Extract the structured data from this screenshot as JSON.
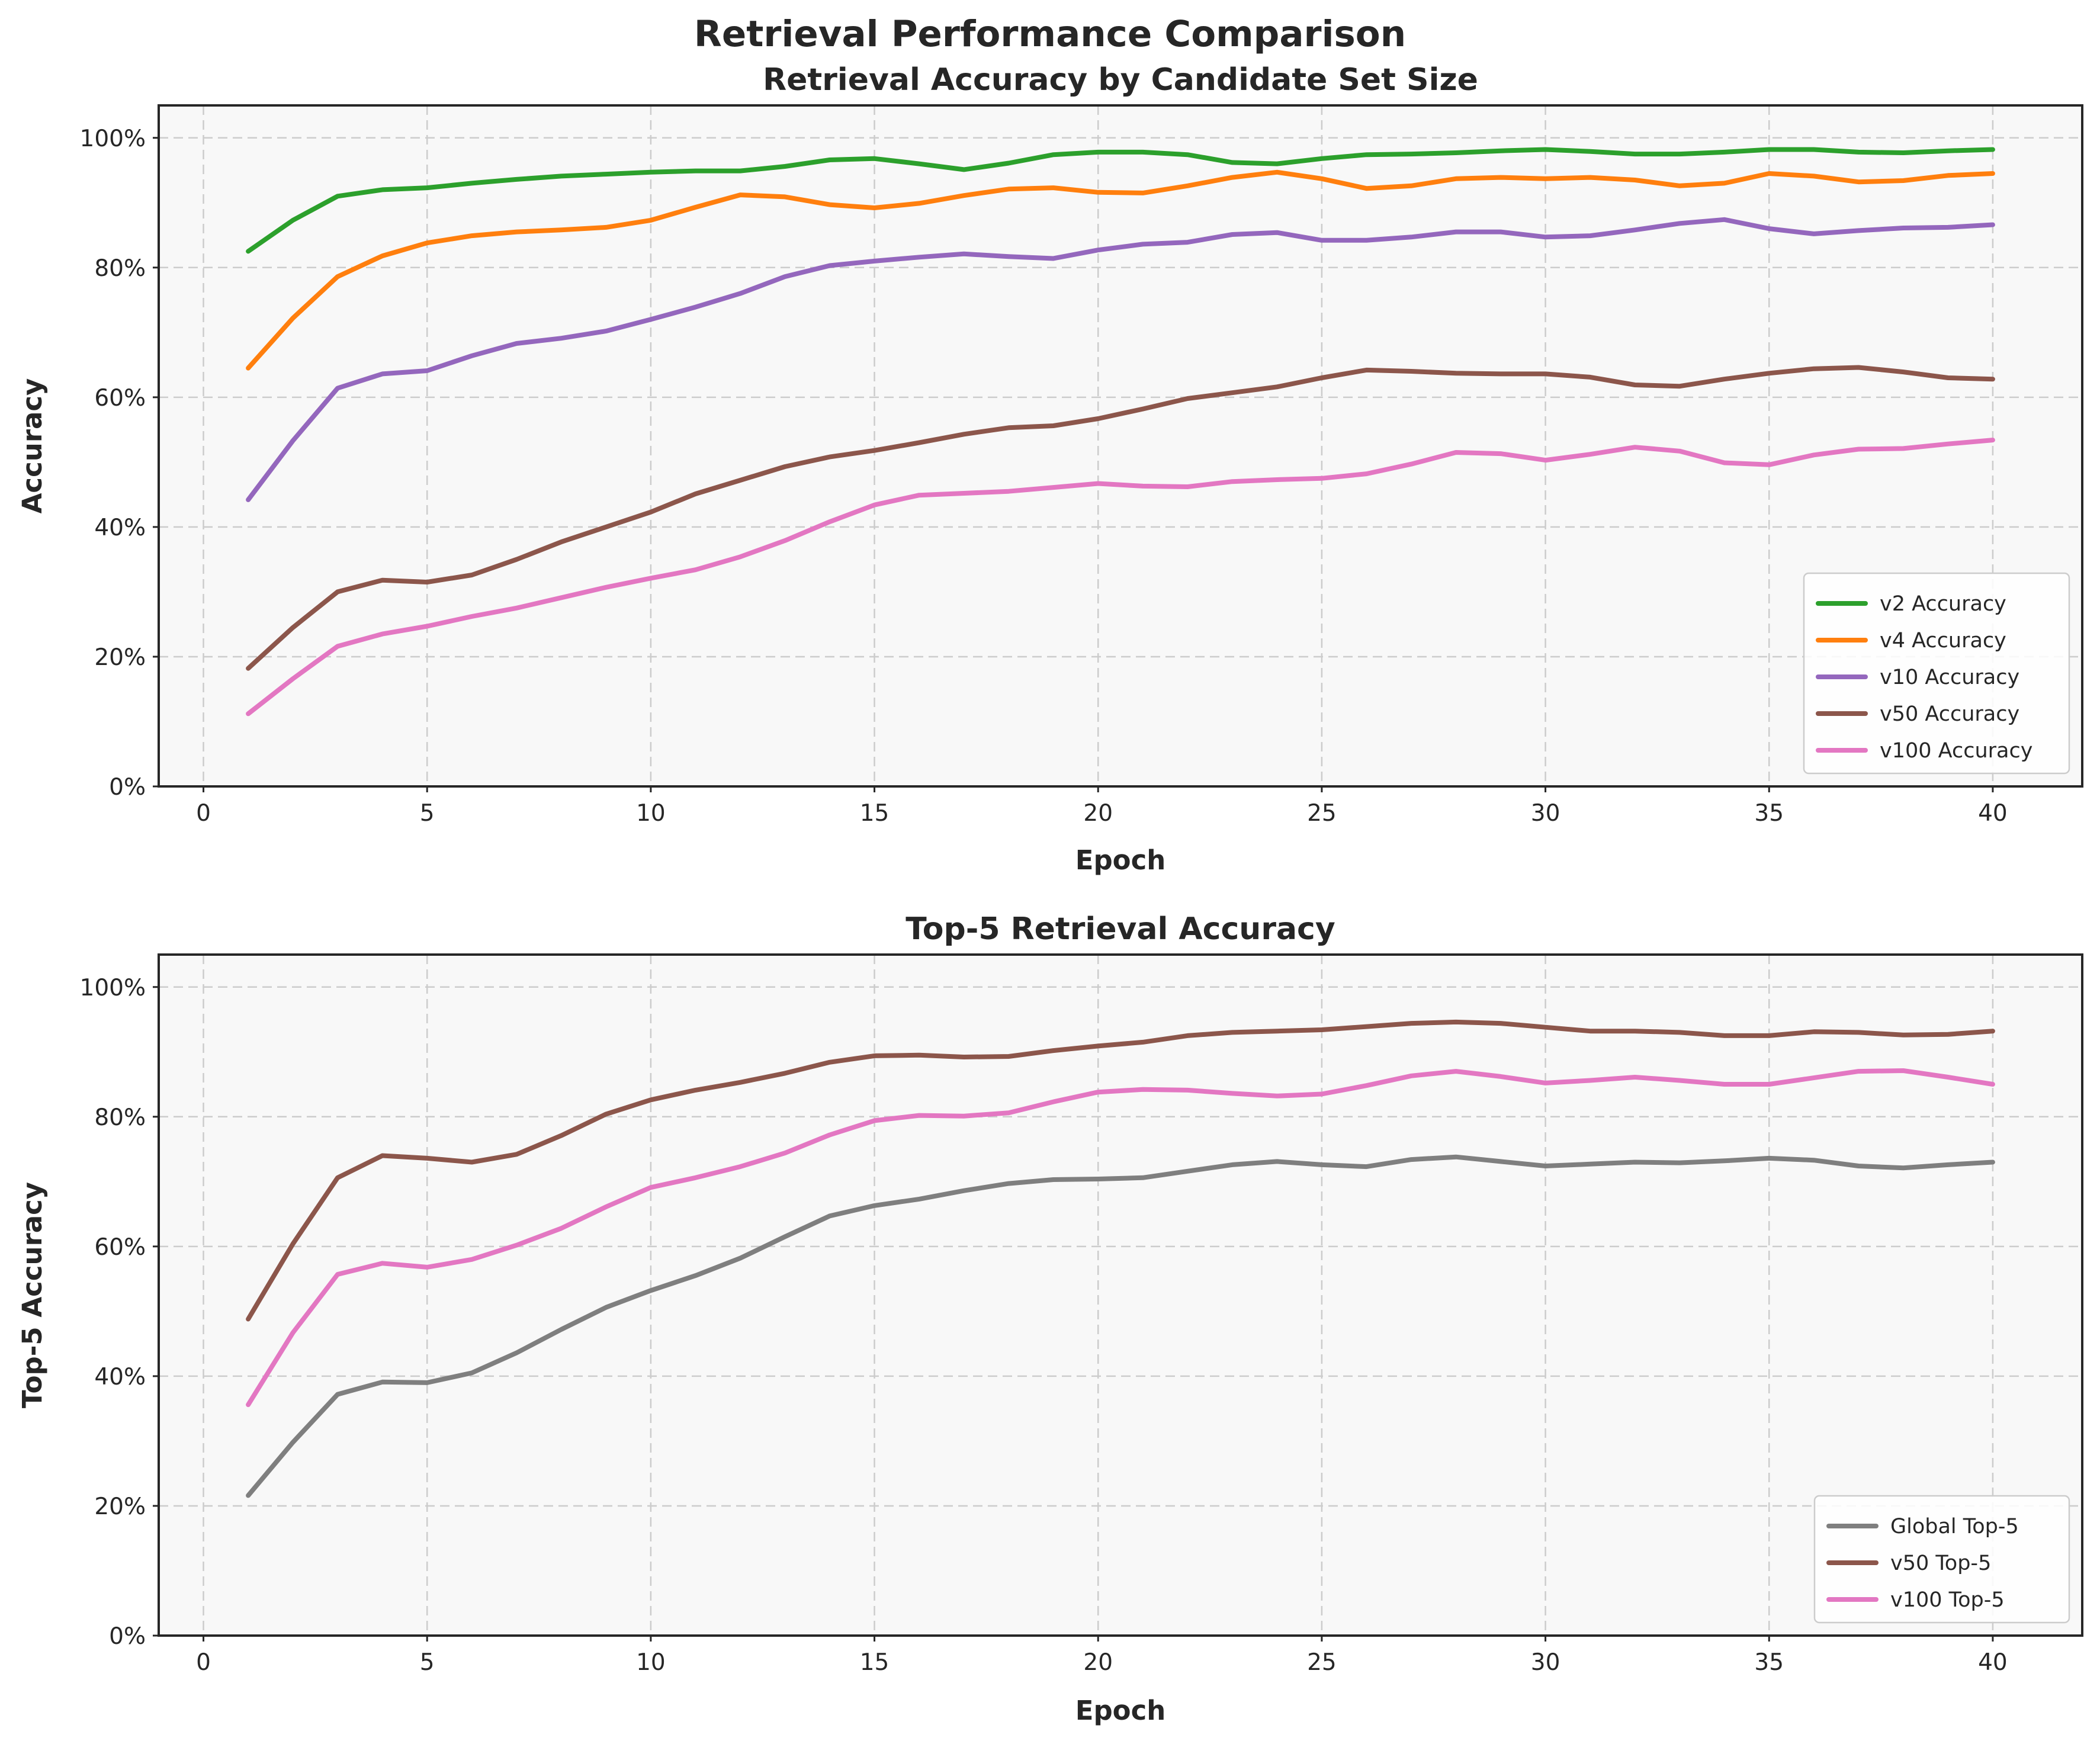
{
  "figure": {
    "suptitle": "Retrieval Performance Comparison"
  },
  "chart_data": [
    {
      "type": "line",
      "title": "Retrieval Accuracy by Candidate Set Size",
      "xlabel": "Epoch",
      "ylabel": "Accuracy",
      "xlim": [
        -1,
        42
      ],
      "ylim": [
        0,
        1.05
      ],
      "xticks": [
        0,
        5,
        10,
        15,
        20,
        25,
        30,
        35,
        40
      ],
      "yticks": [
        0,
        0.2,
        0.4,
        0.6,
        0.8,
        1.0
      ],
      "ytick_labels": [
        "0%",
        "20%",
        "40%",
        "60%",
        "80%",
        "100%"
      ],
      "xtick_labels": [
        "0",
        "5",
        "10",
        "15",
        "20",
        "25",
        "30",
        "35",
        "40"
      ],
      "grid": true,
      "legend_position": "lower-right",
      "x": [
        1,
        2,
        3,
        4,
        5,
        6,
        7,
        8,
        9,
        10,
        11,
        12,
        13,
        14,
        15,
        16,
        17,
        18,
        19,
        20,
        21,
        22,
        23,
        24,
        25,
        26,
        27,
        28,
        29,
        30,
        31,
        32,
        33,
        34,
        35,
        36,
        37,
        38,
        39,
        40
      ],
      "series": [
        {
          "name": "v2 Accuracy",
          "color": "#2ca02c",
          "values": [
            0.825,
            0.873,
            0.91,
            0.92,
            0.923,
            0.93,
            0.936,
            0.941,
            0.944,
            0.947,
            0.949,
            0.949,
            0.956,
            0.966,
            0.968,
            0.96,
            0.951,
            0.961,
            0.974,
            0.978,
            0.978,
            0.974,
            0.962,
            0.96,
            0.968,
            0.974,
            0.975,
            0.977,
            0.98,
            0.982,
            0.979,
            0.975,
            0.975,
            0.978,
            0.982,
            0.982,
            0.978,
            0.977,
            0.98,
            0.982
          ]
        },
        {
          "name": "v4 Accuracy",
          "color": "#ff7f0e",
          "values": [
            0.645,
            0.722,
            0.786,
            0.818,
            0.838,
            0.849,
            0.855,
            0.858,
            0.862,
            0.873,
            0.893,
            0.912,
            0.909,
            0.897,
            0.892,
            0.899,
            0.911,
            0.921,
            0.923,
            0.916,
            0.915,
            0.926,
            0.939,
            0.947,
            0.937,
            0.922,
            0.926,
            0.937,
            0.939,
            0.937,
            0.939,
            0.935,
            0.926,
            0.93,
            0.945,
            0.941,
            0.932,
            0.934,
            0.942,
            0.945
          ]
        },
        {
          "name": "v10 Accuracy",
          "color": "#9467bd",
          "values": [
            0.442,
            0.533,
            0.614,
            0.636,
            0.641,
            0.664,
            0.683,
            0.691,
            0.702,
            0.72,
            0.739,
            0.76,
            0.786,
            0.803,
            0.81,
            0.816,
            0.821,
            0.817,
            0.814,
            0.827,
            0.836,
            0.839,
            0.851,
            0.854,
            0.842,
            0.842,
            0.847,
            0.855,
            0.855,
            0.847,
            0.849,
            0.858,
            0.868,
            0.874,
            0.86,
            0.852,
            0.857,
            0.861,
            0.862,
            0.866
          ]
        },
        {
          "name": "v50 Accuracy",
          "color": "#8c564b",
          "values": [
            0.182,
            0.245,
            0.3,
            0.318,
            0.315,
            0.326,
            0.35,
            0.377,
            0.4,
            0.423,
            0.451,
            0.472,
            0.493,
            0.508,
            0.518,
            0.53,
            0.543,
            0.553,
            0.556,
            0.567,
            0.582,
            0.598,
            0.607,
            0.616,
            0.63,
            0.642,
            0.64,
            0.637,
            0.636,
            0.636,
            0.631,
            0.619,
            0.617,
            0.628,
            0.637,
            0.644,
            0.646,
            0.639,
            0.63,
            0.628
          ]
        },
        {
          "name": "v100 Accuracy",
          "color": "#e377c2",
          "values": [
            0.112,
            0.166,
            0.216,
            0.235,
            0.247,
            0.262,
            0.275,
            0.291,
            0.307,
            0.321,
            0.334,
            0.354,
            0.379,
            0.408,
            0.434,
            0.449,
            0.452,
            0.455,
            0.461,
            0.467,
            0.463,
            0.462,
            0.47,
            0.473,
            0.475,
            0.482,
            0.497,
            0.515,
            0.513,
            0.503,
            0.512,
            0.523,
            0.517,
            0.499,
            0.496,
            0.511,
            0.52,
            0.521,
            0.528,
            0.534
          ]
        }
      ]
    },
    {
      "type": "line",
      "title": "Top-5 Retrieval Accuracy",
      "xlabel": "Epoch",
      "ylabel": "Top-5 Accuracy",
      "xlim": [
        -1,
        42
      ],
      "ylim": [
        0,
        1.05
      ],
      "xticks": [
        0,
        5,
        10,
        15,
        20,
        25,
        30,
        35,
        40
      ],
      "yticks": [
        0,
        0.2,
        0.4,
        0.6,
        0.8,
        1.0
      ],
      "ytick_labels": [
        "0%",
        "20%",
        "40%",
        "60%",
        "80%",
        "100%"
      ],
      "xtick_labels": [
        "0",
        "5",
        "10",
        "15",
        "20",
        "25",
        "30",
        "35",
        "40"
      ],
      "grid": true,
      "legend_position": "lower-right",
      "x": [
        1,
        2,
        3,
        4,
        5,
        6,
        7,
        8,
        9,
        10,
        11,
        12,
        13,
        14,
        15,
        16,
        17,
        18,
        19,
        20,
        21,
        22,
        23,
        24,
        25,
        26,
        27,
        28,
        29,
        30,
        31,
        32,
        33,
        34,
        35,
        36,
        37,
        38,
        39,
        40
      ],
      "series": [
        {
          "name": "Global Top-5",
          "color": "#7f7f7f",
          "values": [
            0.216,
            0.298,
            0.372,
            0.391,
            0.39,
            0.405,
            0.436,
            0.472,
            0.506,
            0.532,
            0.555,
            0.582,
            0.615,
            0.647,
            0.663,
            0.673,
            0.686,
            0.697,
            0.703,
            0.704,
            0.706,
            0.716,
            0.726,
            0.731,
            0.726,
            0.723,
            0.734,
            0.738,
            0.731,
            0.724,
            0.727,
            0.73,
            0.729,
            0.732,
            0.736,
            0.733,
            0.724,
            0.721,
            0.726,
            0.73
          ]
        },
        {
          "name": "v50 Top-5",
          "color": "#8c564b",
          "values": [
            0.488,
            0.604,
            0.706,
            0.74,
            0.736,
            0.73,
            0.742,
            0.771,
            0.804,
            0.826,
            0.841,
            0.853,
            0.867,
            0.884,
            0.894,
            0.895,
            0.892,
            0.893,
            0.902,
            0.909,
            0.915,
            0.925,
            0.93,
            0.932,
            0.934,
            0.939,
            0.944,
            0.946,
            0.944,
            0.938,
            0.932,
            0.932,
            0.93,
            0.925,
            0.925,
            0.931,
            0.93,
            0.926,
            0.927,
            0.932
          ]
        },
        {
          "name": "v100 Top-5",
          "color": "#e377c2",
          "values": [
            0.356,
            0.467,
            0.557,
            0.574,
            0.568,
            0.58,
            0.602,
            0.628,
            0.661,
            0.691,
            0.706,
            0.723,
            0.744,
            0.772,
            0.794,
            0.802,
            0.801,
            0.806,
            0.823,
            0.838,
            0.842,
            0.841,
            0.836,
            0.832,
            0.835,
            0.848,
            0.863,
            0.87,
            0.862,
            0.852,
            0.856,
            0.861,
            0.856,
            0.85,
            0.85,
            0.86,
            0.87,
            0.871,
            0.861,
            0.85
          ]
        }
      ]
    }
  ]
}
